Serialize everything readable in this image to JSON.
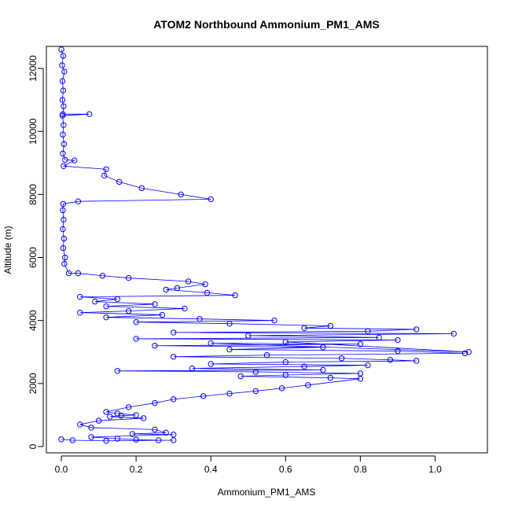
{
  "chart_data": {
    "type": "line",
    "title": "ATOM2 Northbound Ammonium_PM1_AMS",
    "xlabel": "Ammonium_PM1_AMS",
    "ylabel": "Altitude (m)",
    "xlim": [
      -0.04,
      1.14
    ],
    "ylim": [
      -200,
      12700
    ],
    "x_ticks": [
      0.0,
      0.2,
      0.4,
      0.6,
      0.8,
      1.0
    ],
    "x_tick_labels": [
      "0.0",
      "0.2",
      "0.4",
      "0.6",
      "0.8",
      "1.0"
    ],
    "y_ticks": [
      0,
      2000,
      4000,
      6000,
      8000,
      10000,
      12000
    ],
    "y_tick_labels": [
      "0",
      "2000",
      "4000",
      "6000",
      "8000",
      "10000",
      "12000"
    ],
    "grid": false,
    "series_color": "#0000ff",
    "marker": "open-circle",
    "series": [
      {
        "points": [
          [
            0.0,
            12600
          ],
          [
            0.005,
            12400
          ],
          [
            0.002,
            12100
          ],
          [
            0.008,
            11900
          ],
          [
            0.003,
            11600
          ],
          [
            0.005,
            11300
          ],
          [
            0.003,
            11000
          ],
          [
            0.006,
            10800
          ],
          [
            0.004,
            10550
          ],
          [
            0.075,
            10550
          ],
          [
            0.003,
            10500
          ],
          [
            0.006,
            10200
          ],
          [
            0.004,
            9900
          ],
          [
            0.007,
            9600
          ],
          [
            0.004,
            9300
          ],
          [
            0.01,
            9100
          ],
          [
            0.035,
            9080
          ],
          [
            0.006,
            8900
          ],
          [
            0.12,
            8800
          ],
          [
            0.115,
            8600
          ],
          [
            0.155,
            8400
          ],
          [
            0.215,
            8200
          ],
          [
            0.32,
            8000
          ],
          [
            0.4,
            7850
          ],
          [
            0.045,
            7780
          ],
          [
            0.005,
            7700
          ],
          [
            0.004,
            7500
          ],
          [
            0.006,
            7200
          ],
          [
            0.004,
            6900
          ],
          [
            0.007,
            6600
          ],
          [
            0.005,
            6300
          ],
          [
            0.01,
            6000
          ],
          [
            0.008,
            5800
          ],
          [
            0.02,
            5500
          ],
          [
            0.045,
            5500
          ],
          [
            0.11,
            5420
          ],
          [
            0.18,
            5350
          ],
          [
            0.34,
            5240
          ],
          [
            0.385,
            5150
          ],
          [
            0.31,
            5030
          ],
          [
            0.28,
            4980
          ],
          [
            0.39,
            4880
          ],
          [
            0.465,
            4800
          ],
          [
            0.05,
            4750
          ],
          [
            0.15,
            4680
          ],
          [
            0.09,
            4600
          ],
          [
            0.25,
            4520
          ],
          [
            0.12,
            4450
          ],
          [
            0.33,
            4380
          ],
          [
            0.18,
            4300
          ],
          [
            0.05,
            4250
          ],
          [
            0.27,
            4180
          ],
          [
            0.12,
            4100
          ],
          [
            0.37,
            4050
          ],
          [
            0.57,
            4000
          ],
          [
            0.2,
            3950
          ],
          [
            0.45,
            3900
          ],
          [
            0.72,
            3830
          ],
          [
            0.65,
            3760
          ],
          [
            0.95,
            3720
          ],
          [
            0.82,
            3660
          ],
          [
            0.3,
            3620
          ],
          [
            1.05,
            3580
          ],
          [
            0.5,
            3520
          ],
          [
            0.85,
            3460
          ],
          [
            0.2,
            3420
          ],
          [
            0.9,
            3380
          ],
          [
            0.6,
            3320
          ],
          [
            1.09,
            3000
          ],
          [
            0.4,
            3280
          ],
          [
            0.8,
            3250
          ],
          [
            0.25,
            3200
          ],
          [
            0.7,
            3150
          ],
          [
            0.45,
            3080
          ],
          [
            0.9,
            3030
          ],
          [
            1.08,
            2960
          ],
          [
            0.55,
            2900
          ],
          [
            0.3,
            2850
          ],
          [
            0.75,
            2800
          ],
          [
            0.88,
            2750
          ],
          [
            0.95,
            2720
          ],
          [
            0.6,
            2680
          ],
          [
            0.4,
            2620
          ],
          [
            0.82,
            2580
          ],
          [
            0.65,
            2540
          ],
          [
            0.35,
            2480
          ],
          [
            0.7,
            2430
          ],
          [
            0.15,
            2400
          ],
          [
            0.52,
            2370
          ],
          [
            0.8,
            2320
          ],
          [
            0.6,
            2270
          ],
          [
            0.48,
            2230
          ],
          [
            0.72,
            2180
          ],
          [
            0.8,
            2150
          ],
          [
            0.66,
            1950
          ],
          [
            0.59,
            1850
          ],
          [
            0.52,
            1760
          ],
          [
            0.45,
            1680
          ],
          [
            0.38,
            1600
          ],
          [
            0.3,
            1500
          ],
          [
            0.25,
            1380
          ],
          [
            0.18,
            1250
          ],
          [
            0.12,
            1100
          ],
          [
            0.15,
            1050
          ],
          [
            0.2,
            1000
          ],
          [
            0.16,
            980
          ],
          [
            0.13,
            950
          ],
          [
            0.22,
            900
          ],
          [
            0.1,
            820
          ],
          [
            0.05,
            700
          ],
          [
            0.08,
            600
          ],
          [
            0.25,
            540
          ],
          [
            0.28,
            440
          ],
          [
            0.19,
            400
          ],
          [
            0.3,
            380
          ],
          [
            0.08,
            300
          ],
          [
            0.15,
            250
          ],
          [
            0.2,
            220
          ],
          [
            0.26,
            200
          ],
          [
            0.3,
            200
          ],
          [
            0.12,
            180
          ],
          [
            0.03,
            200
          ],
          [
            0.0,
            230
          ]
        ]
      }
    ]
  }
}
